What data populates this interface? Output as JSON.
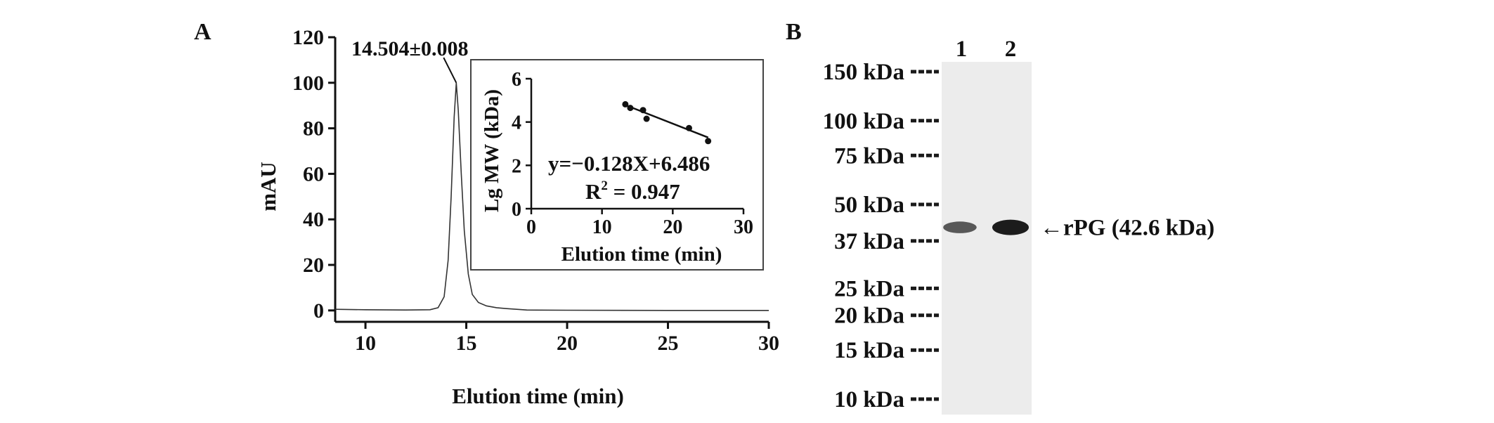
{
  "panel_a_label": "A",
  "panel_b_label": "B",
  "chart_data": [
    {
      "panel": "A",
      "type": "line",
      "xlabel": "Elution time (min)",
      "ylabel": "mAU",
      "xlim": [
        8.5,
        30
      ],
      "ylim": [
        -5,
        120
      ],
      "x_ticks": [
        10,
        15,
        20,
        25,
        30
      ],
      "y_ticks": [
        0,
        20,
        40,
        60,
        80,
        100,
        120
      ],
      "peak_annotation": "14.504±0.008",
      "peak": {
        "x": 14.504,
        "y": 100
      },
      "grid": false,
      "series": [
        {
          "x": [
            8.5,
            10,
            12,
            13.2,
            13.6,
            13.9,
            14.1,
            14.25,
            14.4,
            14.504,
            14.6,
            14.75,
            14.9,
            15.1,
            15.3,
            15.6,
            16,
            16.5,
            17,
            17.5,
            18,
            20,
            25,
            30
          ],
          "y": [
            0.5,
            0.3,
            0.2,
            0.3,
            1.2,
            6,
            22,
            50,
            85,
            100,
            88,
            60,
            35,
            16,
            7,
            3.5,
            2,
            1.2,
            0.8,
            0.5,
            0.2,
            0.1,
            0,
            0
          ]
        }
      ]
    },
    {
      "panel": "A-inset",
      "type": "scatter",
      "xlabel": "Elution time (min)",
      "ylabel": "Lg MW (kDa)",
      "xlim": [
        0,
        30
      ],
      "ylim": [
        0,
        6
      ],
      "x_ticks": [
        0,
        10,
        20,
        30
      ],
      "y_ticks": [
        0,
        2,
        4,
        6
      ],
      "equation": "y=−0.128X+6.486",
      "r2_label": "R",
      "r2_sup": "2",
      "r2_value": " = 0.947",
      "points": {
        "x": [
          13.3,
          14.0,
          15.8,
          16.3,
          22.3,
          25.0
        ],
        "y": [
          4.82,
          4.65,
          4.55,
          4.15,
          3.72,
          3.12
        ]
      },
      "fit": {
        "slope": -0.128,
        "intercept": 6.486,
        "x_range": [
          13.3,
          25.0
        ]
      }
    },
    {
      "panel": "B",
      "type": "other",
      "lanes": [
        "1",
        "2"
      ],
      "markers": [
        {
          "label": "150 kDa",
          "kda": 150
        },
        {
          "label": "100 kDa",
          "kda": 100
        },
        {
          "label": "75 kDa",
          "kda": 75
        },
        {
          "label": "50 kDa",
          "kda": 50
        },
        {
          "label": "37 kDa",
          "kda": 37
        },
        {
          "label": "25 kDa",
          "kda": 25
        },
        {
          "label": "20 kDa",
          "kda": 20
        },
        {
          "label": "15 kDa",
          "kda": 15
        },
        {
          "label": "10 kDa",
          "kda": 10
        }
      ],
      "band_annotation": "←rPG (42.6 kDa)",
      "band_kda": 42.6,
      "band_intensity": [
        0.55,
        1.0
      ]
    }
  ]
}
